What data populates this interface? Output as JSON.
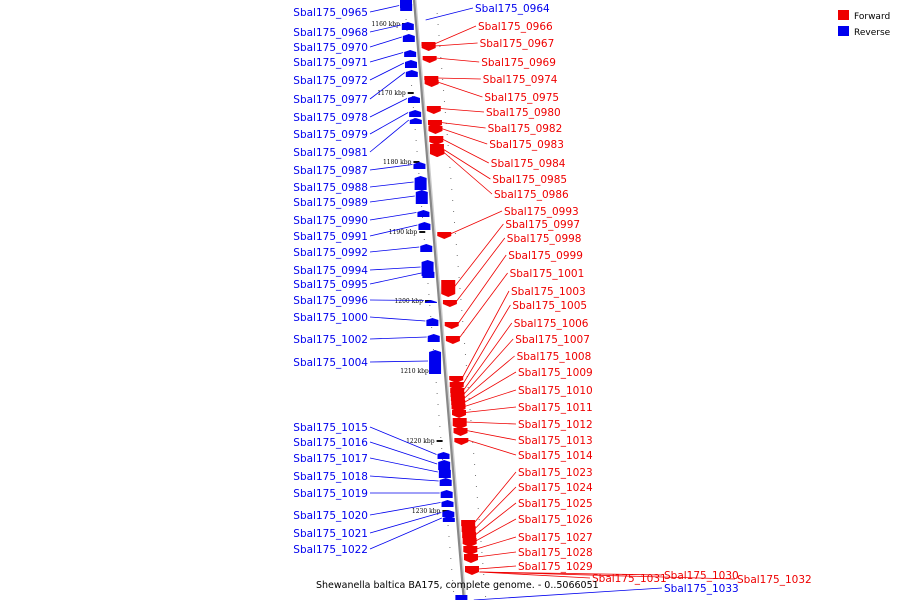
{
  "caption": "Shewanella baltica BA175, complete genome. - 0..5066051",
  "colors": {
    "forward": "#ee0000",
    "reverse": "#0000ee",
    "axis": "#888888"
  },
  "legend": [
    {
      "label": "Forward",
      "color": "#ee0000"
    },
    {
      "label": "Reverse",
      "color": "#0000ee"
    }
  ],
  "ticks": [
    "1160 kbp",
    "1170 kbp",
    "1180 kbp",
    "1190 kbp",
    "1200 kbp",
    "1210 kbp",
    "1220 kbp",
    "1230 kbp"
  ],
  "reverse_genes": [
    "Sbal175_0965",
    "Sbal175_0968",
    "Sbal175_0970",
    "Sbal175_0971",
    "Sbal175_0972",
    "Sbal175_0977",
    "Sbal175_0978",
    "Sbal175_0979",
    "Sbal175_0981",
    "Sbal175_0987",
    "Sbal175_0988",
    "Sbal175_0989",
    "Sbal175_0990",
    "Sbal175_0991",
    "Sbal175_0992",
    "Sbal175_0994",
    "Sbal175_0995",
    "Sbal175_0996",
    "Sbal175_1000",
    "Sbal175_1002",
    "Sbal175_1004",
    "Sbal175_1015",
    "Sbal175_1016",
    "Sbal175_1017",
    "Sbal175_1018",
    "Sbal175_1019",
    "Sbal175_1020",
    "Sbal175_1021",
    "Sbal175_1022"
  ],
  "reverse_right_genes": [
    "Sbal175_0964",
    "Sbal175_1033"
  ],
  "forward_genes": [
    "Sbal175_0966",
    "Sbal175_0967",
    "Sbal175_0969",
    "Sbal175_0974",
    "Sbal175_0975",
    "Sbal175_0980",
    "Sbal175_0982",
    "Sbal175_0983",
    "Sbal175_0984",
    "Sbal175_0985",
    "Sbal175_0986",
    "Sbal175_0993",
    "Sbal175_0997",
    "Sbal175_0998",
    "Sbal175_0999",
    "Sbal175_1001",
    "Sbal175_1003",
    "Sbal175_1005",
    "Sbal175_1006",
    "Sbal175_1007",
    "Sbal175_1008",
    "Sbal175_1009",
    "Sbal175_1010",
    "Sbal175_1011",
    "Sbal175_1012",
    "Sbal175_1013",
    "Sbal175_1014",
    "Sbal175_1023",
    "Sbal175_1024",
    "Sbal175_1025",
    "Sbal175_1026",
    "Sbal175_1027",
    "Sbal175_1028",
    "Sbal175_1029"
  ],
  "forward_far_genes": [
    "Sbal175_1031",
    "Sbal175_1030",
    "Sbal175_1032"
  ]
}
